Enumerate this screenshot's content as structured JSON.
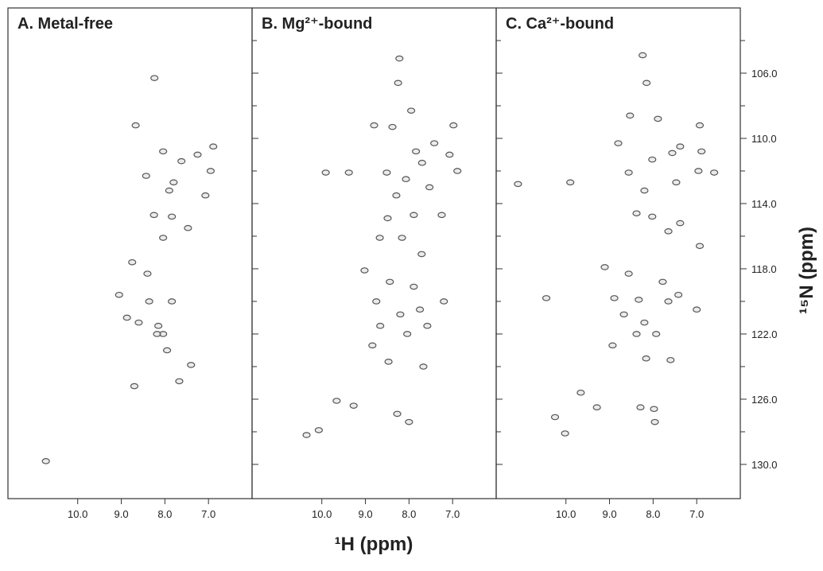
{
  "chart_data": [
    {
      "type": "scatter",
      "title": "A. Metal-free",
      "color": "#555555",
      "x": [
        8.24,
        8.67,
        8.43,
        8.04,
        7.62,
        7.8,
        7.9,
        7.25,
        6.89,
        6.95,
        7.07,
        8.25,
        7.84,
        7.47,
        8.04,
        8.75,
        8.4,
        9.05,
        8.87,
        8.6,
        8.15,
        7.84,
        8.04,
        8.36,
        7.95,
        7.67,
        8.7,
        10.73,
        7.4,
        8.18
      ],
      "values": [
        106.3,
        109.2,
        112.3,
        110.8,
        111.4,
        112.7,
        113.2,
        111.0,
        110.5,
        112.0,
        113.5,
        114.7,
        114.8,
        115.5,
        116.1,
        117.6,
        118.3,
        119.6,
        121.0,
        121.3,
        121.5,
        120.0,
        122.0,
        120.0,
        123.0,
        124.9,
        125.2,
        129.8,
        123.9,
        122.0
      ],
      "xlim": [
        11.6,
        6.0
      ],
      "xticks": [
        {
          "value": 10,
          "label": "10.0"
        },
        {
          "value": 9,
          "label": "9.0"
        },
        {
          "value": 8,
          "label": "8.0"
        },
        {
          "value": 7,
          "label": "7.0"
        }
      ]
    },
    {
      "type": "scatter",
      "title": "B. Mg²⁺-bound",
      "color": "#555555",
      "x": [
        8.22,
        8.25,
        7.95,
        8.8,
        8.38,
        6.98,
        7.42,
        7.84,
        7.7,
        7.07,
        6.89,
        9.91,
        9.38,
        8.51,
        8.07,
        7.53,
        8.29,
        8.49,
        7.89,
        7.25,
        8.67,
        8.16,
        7.71,
        9.02,
        8.44,
        7.89,
        8.75,
        8.2,
        7.75,
        7.2,
        8.66,
        8.04,
        7.58,
        8.84,
        8.47,
        7.67,
        9.66,
        9.27,
        8.27,
        8.0,
        10.35,
        10.07
      ],
      "values": [
        105.1,
        106.6,
        108.3,
        109.2,
        109.3,
        109.2,
        110.3,
        110.8,
        111.5,
        111.0,
        112.0,
        112.1,
        112.1,
        112.1,
        112.5,
        113.0,
        113.5,
        114.9,
        114.7,
        114.7,
        116.1,
        116.1,
        117.1,
        118.1,
        118.8,
        119.1,
        120.0,
        120.8,
        120.5,
        120.0,
        121.5,
        122.0,
        121.5,
        122.7,
        123.7,
        124.0,
        126.1,
        126.4,
        126.9,
        127.4,
        128.2,
        127.9
      ],
      "xlim": [
        11.6,
        6.0
      ],
      "xticks": [
        {
          "value": 10,
          "label": "10.0"
        },
        {
          "value": 9,
          "label": "9.0"
        },
        {
          "value": 8,
          "label": "8.0"
        },
        {
          "value": 7,
          "label": "7.0"
        }
      ],
      "xlabel": "¹H (ppm)"
    },
    {
      "type": "scatter",
      "title": "C. Ca²⁺-bound",
      "color": "#555555",
      "x": [
        8.24,
        8.15,
        8.53,
        7.89,
        6.93,
        8.8,
        7.38,
        7.56,
        8.02,
        6.89,
        6.96,
        6.6,
        11.1,
        9.9,
        8.56,
        8.2,
        7.47,
        8.38,
        8.02,
        7.65,
        7.38,
        6.93,
        9.11,
        8.56,
        7.78,
        7.42,
        8.89,
        8.33,
        8.2,
        8.67,
        7.65,
        7.0,
        8.38,
        7.93,
        8.93,
        8.16,
        7.6,
        10.25,
        10.02,
        9.66,
        9.29,
        8.29,
        7.98,
        7.96,
        10.45
      ],
      "values": [
        104.9,
        106.6,
        108.6,
        108.8,
        109.2,
        110.3,
        110.5,
        110.9,
        111.3,
        110.8,
        112.0,
        112.1,
        112.8,
        112.7,
        112.1,
        113.2,
        112.7,
        114.6,
        114.8,
        115.7,
        115.2,
        116.6,
        117.9,
        118.3,
        118.8,
        119.6,
        119.8,
        119.9,
        121.3,
        120.8,
        120.0,
        120.5,
        122.0,
        122.0,
        122.7,
        123.5,
        123.6,
        127.1,
        128.1,
        125.6,
        126.5,
        126.5,
        126.6,
        127.4,
        119.8
      ],
      "xlim": [
        11.6,
        6.0
      ],
      "xticks": [
        {
          "value": 10,
          "label": "10.0"
        },
        {
          "value": 9,
          "label": "9.0"
        },
        {
          "value": 8,
          "label": "8.0"
        },
        {
          "value": 7,
          "label": "7.0"
        }
      ],
      "ylim": [
        102,
        132.1
      ],
      "yticks": [
        {
          "value": 106,
          "label": "106.0"
        },
        {
          "value": 110,
          "label": "110.0"
        },
        {
          "value": 114,
          "label": "114.0"
        },
        {
          "value": 118,
          "label": "118.0"
        },
        {
          "value": 122,
          "label": "122.0"
        },
        {
          "value": 126,
          "label": "126.0"
        },
        {
          "value": 130,
          "label": "130.0"
        }
      ],
      "yticks_minor": [
        104,
        108,
        112,
        116,
        120,
        124,
        128
      ],
      "ylabel": "¹⁵N (ppm)"
    }
  ]
}
